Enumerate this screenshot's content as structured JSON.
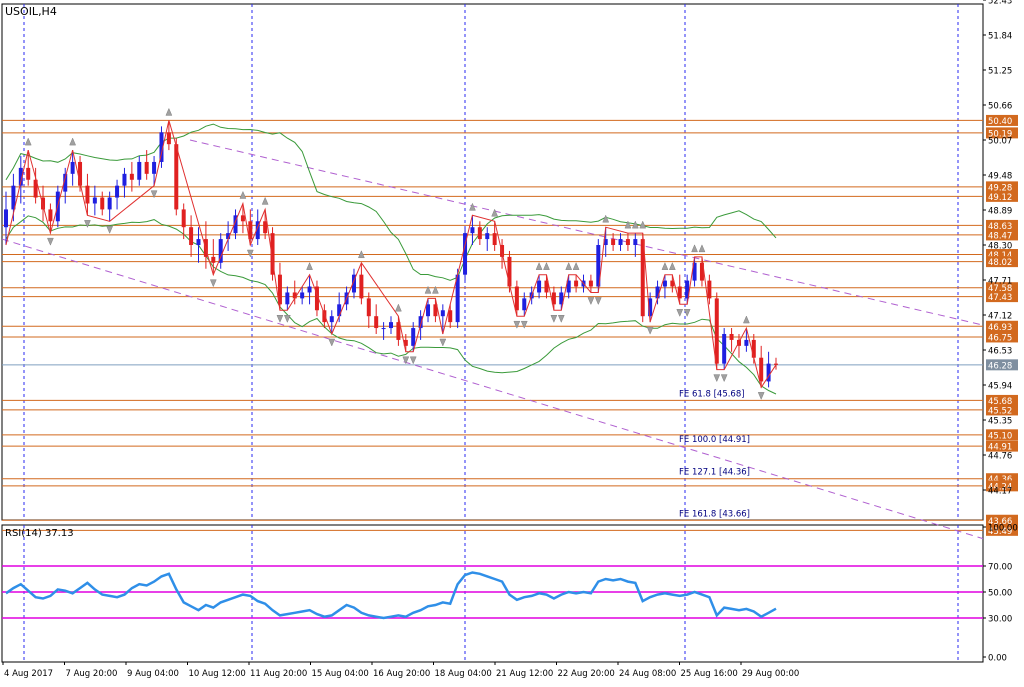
{
  "chart_data": [
    {
      "type": "candlestick",
      "title": "USOIL,H4",
      "price_axis_labels": [
        "52.43",
        "51.84",
        "51.25",
        "50.66",
        "50.07",
        "49.48",
        "48.89",
        "48.30",
        "47.71",
        "47.12",
        "46.53",
        "45.94",
        "45.35",
        "44.76",
        "44.17"
      ],
      "ylim": [
        43.0,
        52.9
      ],
      "x_labels": [
        "4 Aug 2017",
        "7 Aug 20:00",
        "9 Aug 04:00",
        "10 Aug 12:00",
        "11 Aug 20:00",
        "15 Aug 04:00",
        "16 Aug 20:00",
        "18 Aug 04:00",
        "21 Aug 12:00",
        "22 Aug 20:00",
        "24 Aug 08:00",
        "25 Aug 16:00",
        "29 Aug 00:00"
      ],
      "current_price": "46.28",
      "horizontal_levels": [
        "50.40",
        "50.19",
        "49.28",
        "49.12",
        "48.63",
        "48.47",
        "48.14",
        "48.02",
        "47.58",
        "47.43",
        "46.93",
        "46.75",
        "45.68",
        "45.52",
        "45.10",
        "44.91",
        "44.36",
        "44.24",
        "43.66",
        "43.49"
      ],
      "fibonacci_expansion": [
        {
          "label": "FE 61.8 [45.68]",
          "price": 45.68
        },
        {
          "label": "FE 100.0 [44.91]",
          "price": 44.91
        },
        {
          "label": "FE 127.1 [44.36]",
          "price": 44.36
        },
        {
          "label": "FE 161.8 [43.66]",
          "price": 43.66
        }
      ],
      "candles": [
        [
          48.6,
          49.2,
          48.3,
          48.9
        ],
        [
          48.9,
          49.5,
          48.7,
          49.3
        ],
        [
          49.3,
          49.8,
          49.0,
          49.6
        ],
        [
          49.6,
          49.9,
          49.3,
          49.4
        ],
        [
          49.4,
          49.6,
          49.0,
          49.1
        ],
        [
          49.1,
          49.3,
          48.7,
          48.9
        ],
        [
          48.9,
          49.0,
          48.5,
          48.7
        ],
        [
          48.7,
          49.3,
          48.6,
          49.2
        ],
        [
          49.2,
          49.6,
          49.0,
          49.5
        ],
        [
          49.5,
          49.9,
          49.3,
          49.7
        ],
        [
          49.7,
          49.8,
          49.2,
          49.3
        ],
        [
          49.3,
          49.5,
          48.8,
          49.0
        ],
        [
          49.0,
          49.3,
          48.8,
          49.1
        ],
        [
          49.1,
          49.2,
          48.8,
          48.9
        ],
        [
          48.9,
          49.2,
          48.7,
          49.1
        ],
        [
          49.1,
          49.4,
          48.9,
          49.3
        ],
        [
          49.3,
          49.6,
          49.1,
          49.5
        ],
        [
          49.5,
          49.7,
          49.2,
          49.4
        ],
        [
          49.4,
          49.8,
          49.3,
          49.7
        ],
        [
          49.7,
          49.9,
          49.4,
          49.5
        ],
        [
          49.5,
          49.8,
          49.3,
          49.7
        ],
        [
          49.7,
          50.3,
          49.6,
          50.2
        ],
        [
          50.2,
          50.4,
          49.9,
          50.0
        ],
        [
          50.0,
          50.1,
          48.8,
          48.9
        ],
        [
          48.9,
          49.0,
          48.4,
          48.6
        ],
        [
          48.6,
          48.8,
          48.1,
          48.3
        ],
        [
          48.3,
          48.6,
          48.0,
          48.4
        ],
        [
          48.4,
          48.7,
          47.9,
          48.1
        ],
        [
          48.1,
          48.4,
          47.8,
          48.0
        ],
        [
          48.0,
          48.5,
          47.9,
          48.4
        ],
        [
          48.4,
          48.7,
          48.2,
          48.5
        ],
        [
          48.5,
          48.9,
          48.4,
          48.8
        ],
        [
          48.8,
          49.0,
          48.5,
          48.7
        ],
        [
          48.7,
          48.9,
          48.3,
          48.4
        ],
        [
          48.4,
          48.9,
          48.3,
          48.7
        ],
        [
          48.7,
          48.9,
          48.4,
          48.5
        ],
        [
          48.5,
          48.6,
          47.7,
          47.8
        ],
        [
          47.8,
          48.0,
          47.2,
          47.3
        ],
        [
          47.3,
          47.6,
          47.2,
          47.5
        ],
        [
          47.5,
          47.7,
          47.3,
          47.4
        ],
        [
          47.4,
          47.6,
          47.3,
          47.5
        ],
        [
          47.5,
          47.8,
          47.3,
          47.6
        ],
        [
          47.6,
          47.7,
          47.1,
          47.2
        ],
        [
          47.2,
          47.3,
          46.9,
          47.0
        ],
        [
          47.0,
          47.2,
          46.8,
          47.1
        ],
        [
          47.1,
          47.5,
          47.0,
          47.3
        ],
        [
          47.3,
          47.6,
          47.2,
          47.5
        ],
        [
          47.5,
          47.9,
          47.4,
          47.8
        ],
        [
          47.8,
          48.0,
          47.3,
          47.4
        ],
        [
          47.4,
          47.5,
          46.9,
          47.1
        ],
        [
          47.1,
          47.3,
          46.8,
          46.9
        ],
        [
          46.9,
          47.0,
          46.7,
          46.9
        ],
        [
          46.9,
          47.1,
          46.8,
          47.0
        ],
        [
          47.0,
          47.1,
          46.6,
          46.7
        ],
        [
          46.7,
          46.8,
          46.5,
          46.6
        ],
        [
          46.6,
          47.0,
          46.5,
          46.9
        ],
        [
          46.9,
          47.2,
          46.7,
          47.1
        ],
        [
          47.1,
          47.4,
          47.0,
          47.3
        ],
        [
          47.3,
          47.4,
          47.0,
          47.1
        ],
        [
          47.1,
          47.3,
          46.8,
          47.2
        ],
        [
          47.2,
          47.3,
          46.9,
          47.0
        ],
        [
          47.0,
          47.9,
          46.9,
          47.8
        ],
        [
          47.8,
          48.6,
          47.7,
          48.5
        ],
        [
          48.5,
          48.8,
          48.3,
          48.6
        ],
        [
          48.6,
          48.7,
          48.3,
          48.4
        ],
        [
          48.4,
          48.6,
          48.2,
          48.5
        ],
        [
          48.5,
          48.7,
          48.2,
          48.3
        ],
        [
          48.3,
          48.4,
          47.9,
          48.1
        ],
        [
          48.1,
          48.2,
          47.5,
          47.6
        ],
        [
          47.6,
          47.7,
          47.1,
          47.2
        ],
        [
          47.2,
          47.5,
          47.1,
          47.4
        ],
        [
          47.4,
          47.6,
          47.3,
          47.5
        ],
        [
          47.5,
          47.8,
          47.4,
          47.7
        ],
        [
          47.7,
          47.8,
          47.4,
          47.5
        ],
        [
          47.5,
          47.6,
          47.2,
          47.3
        ],
        [
          47.3,
          47.6,
          47.2,
          47.5
        ],
        [
          47.5,
          47.8,
          47.4,
          47.7
        ],
        [
          47.7,
          47.8,
          47.5,
          47.6
        ],
        [
          47.6,
          47.8,
          47.5,
          47.7
        ],
        [
          47.7,
          47.8,
          47.5,
          47.6
        ],
        [
          47.6,
          48.4,
          47.5,
          48.3
        ],
        [
          48.3,
          48.6,
          48.1,
          48.4
        ],
        [
          48.4,
          48.5,
          48.2,
          48.3
        ],
        [
          48.3,
          48.5,
          48.2,
          48.4
        ],
        [
          48.4,
          48.5,
          48.2,
          48.3
        ],
        [
          48.3,
          48.5,
          48.1,
          48.4
        ],
        [
          48.4,
          48.5,
          47.0,
          47.1
        ],
        [
          47.1,
          47.5,
          47.0,
          47.4
        ],
        [
          47.4,
          47.7,
          47.3,
          47.6
        ],
        [
          47.6,
          47.8,
          47.4,
          47.7
        ],
        [
          47.7,
          47.8,
          47.5,
          47.6
        ],
        [
          47.6,
          47.8,
          47.3,
          47.4
        ],
        [
          47.4,
          47.8,
          47.3,
          47.7
        ],
        [
          47.7,
          48.1,
          47.6,
          48.0
        ],
        [
          48.0,
          48.1,
          47.6,
          47.7
        ],
        [
          47.7,
          47.8,
          47.3,
          47.4
        ],
        [
          47.4,
          47.5,
          46.2,
          46.3
        ],
        [
          46.3,
          46.9,
          46.2,
          46.8
        ],
        [
          46.8,
          46.9,
          46.5,
          46.7
        ],
        [
          46.7,
          46.8,
          46.4,
          46.6
        ],
        [
          46.6,
          46.9,
          46.5,
          46.7
        ],
        [
          46.7,
          46.8,
          46.3,
          46.4
        ],
        [
          46.4,
          46.6,
          45.9,
          46.0
        ],
        [
          46.0,
          46.5,
          45.9,
          46.3
        ],
        [
          46.3,
          46.4,
          46.2,
          46.28
        ]
      ]
    },
    {
      "type": "line",
      "title": "RSI(14) 37.13",
      "y_axis_labels": [
        "100.00",
        "70.00",
        "50.00",
        "30.00",
        "0.00"
      ],
      "ylim": [
        0,
        100
      ],
      "levels": [
        70,
        50,
        30
      ],
      "values": [
        49,
        53,
        56,
        51,
        46,
        45,
        47,
        52,
        51,
        49,
        53,
        57,
        52,
        48,
        47,
        46,
        48,
        53,
        56,
        55,
        58,
        62,
        64,
        52,
        42,
        39,
        36,
        40,
        38,
        42,
        44,
        46,
        48,
        47,
        43,
        41,
        36,
        32,
        33,
        34,
        35,
        36,
        33,
        31,
        32,
        36,
        40,
        38,
        34,
        32,
        31,
        30,
        31,
        32,
        31,
        34,
        36,
        39,
        40,
        42,
        41,
        56,
        63,
        65,
        64,
        62,
        60,
        58,
        48,
        44,
        46,
        47,
        49,
        48,
        45,
        48,
        50,
        49,
        50,
        49,
        58,
        60,
        59,
        60,
        58,
        57,
        43,
        46,
        48,
        49,
        48,
        47,
        48,
        50,
        48,
        46,
        32,
        38,
        37,
        36,
        37,
        35,
        31,
        34,
        37.13
      ]
    }
  ]
}
